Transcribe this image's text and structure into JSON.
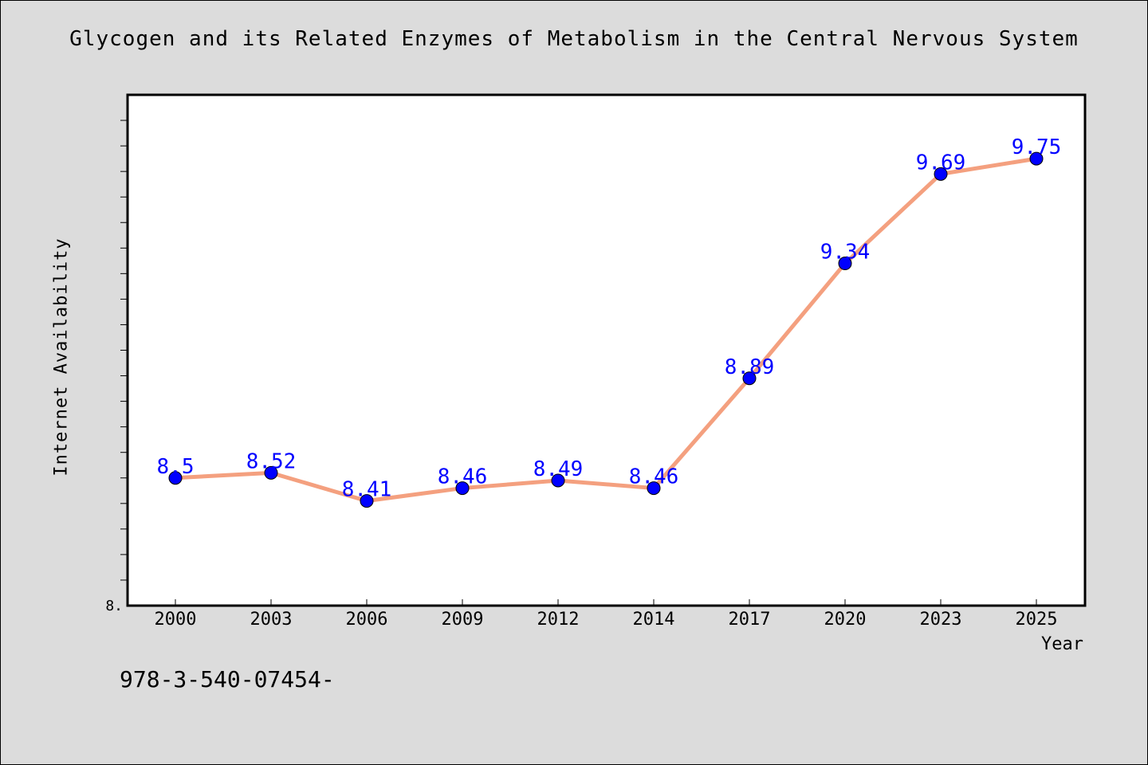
{
  "chart_data": {
    "type": "line",
    "title": "Glycogen and its Related Enzymes of Metabolism in the Central Nervous System",
    "xlabel": "Year",
    "ylabel": "Internet Availability",
    "categories": [
      "2000",
      "2003",
      "2006",
      "2009",
      "2012",
      "2014",
      "2017",
      "2020",
      "2023",
      "2025"
    ],
    "series": [
      {
        "values": [
          8.5,
          8.52,
          8.41,
          8.46,
          8.49,
          8.46,
          8.89,
          9.34,
          9.69,
          9.75
        ],
        "labels": [
          "8.5",
          "8.52",
          "8.41",
          "8.46",
          "8.49",
          "8.46",
          "8.89",
          "9.34",
          "9.69",
          "9.75"
        ]
      }
    ],
    "ylim": [
      8.0,
      10.0
    ],
    "yticklabel_min": "8.",
    "grid": false,
    "legend": "none",
    "line_color": "#f4a07f",
    "marker_color": "#0000ff",
    "label_color": "#0000ff"
  },
  "footer_text": "978-3-540-07454-",
  "colors": {
    "background": "#dcdcdc",
    "plot_background": "#ffffff"
  }
}
